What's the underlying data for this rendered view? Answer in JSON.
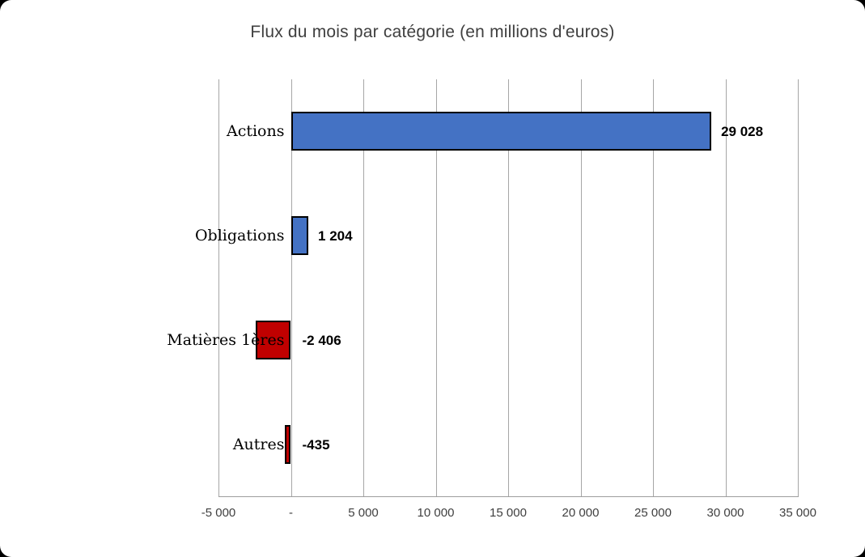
{
  "chart_data": {
    "type": "bar",
    "orientation": "horizontal",
    "title": "Flux du mois par catégorie (en millions d'euros)",
    "categories": [
      "Actions",
      "Obligations",
      "Matières 1ères",
      "Autres"
    ],
    "values": [
      29028,
      1204,
      -2406,
      -435
    ],
    "value_labels": [
      "29 028",
      "1 204",
      "-2 406",
      "-435"
    ],
    "xlabel": "",
    "ylabel": "",
    "xlim": [
      -5000,
      35000
    ],
    "x_tick_interval": 5000,
    "x_ticks": [
      "-5 000",
      "-",
      "5 000",
      "10 000",
      "15 000",
      "20 000",
      "25 000",
      "30 000",
      "35 000"
    ],
    "grid": "vertical-on",
    "legend": "none",
    "colors": {
      "positive_bar": "#4472C4",
      "negative_bar": "#C00000",
      "bar_border": "#000000",
      "gridline": "#A6A6A6",
      "title_text": "#3F3F3F",
      "tick_text": "#3F3F3F",
      "label_text": "#000000",
      "background": "#FFFFFF"
    }
  }
}
